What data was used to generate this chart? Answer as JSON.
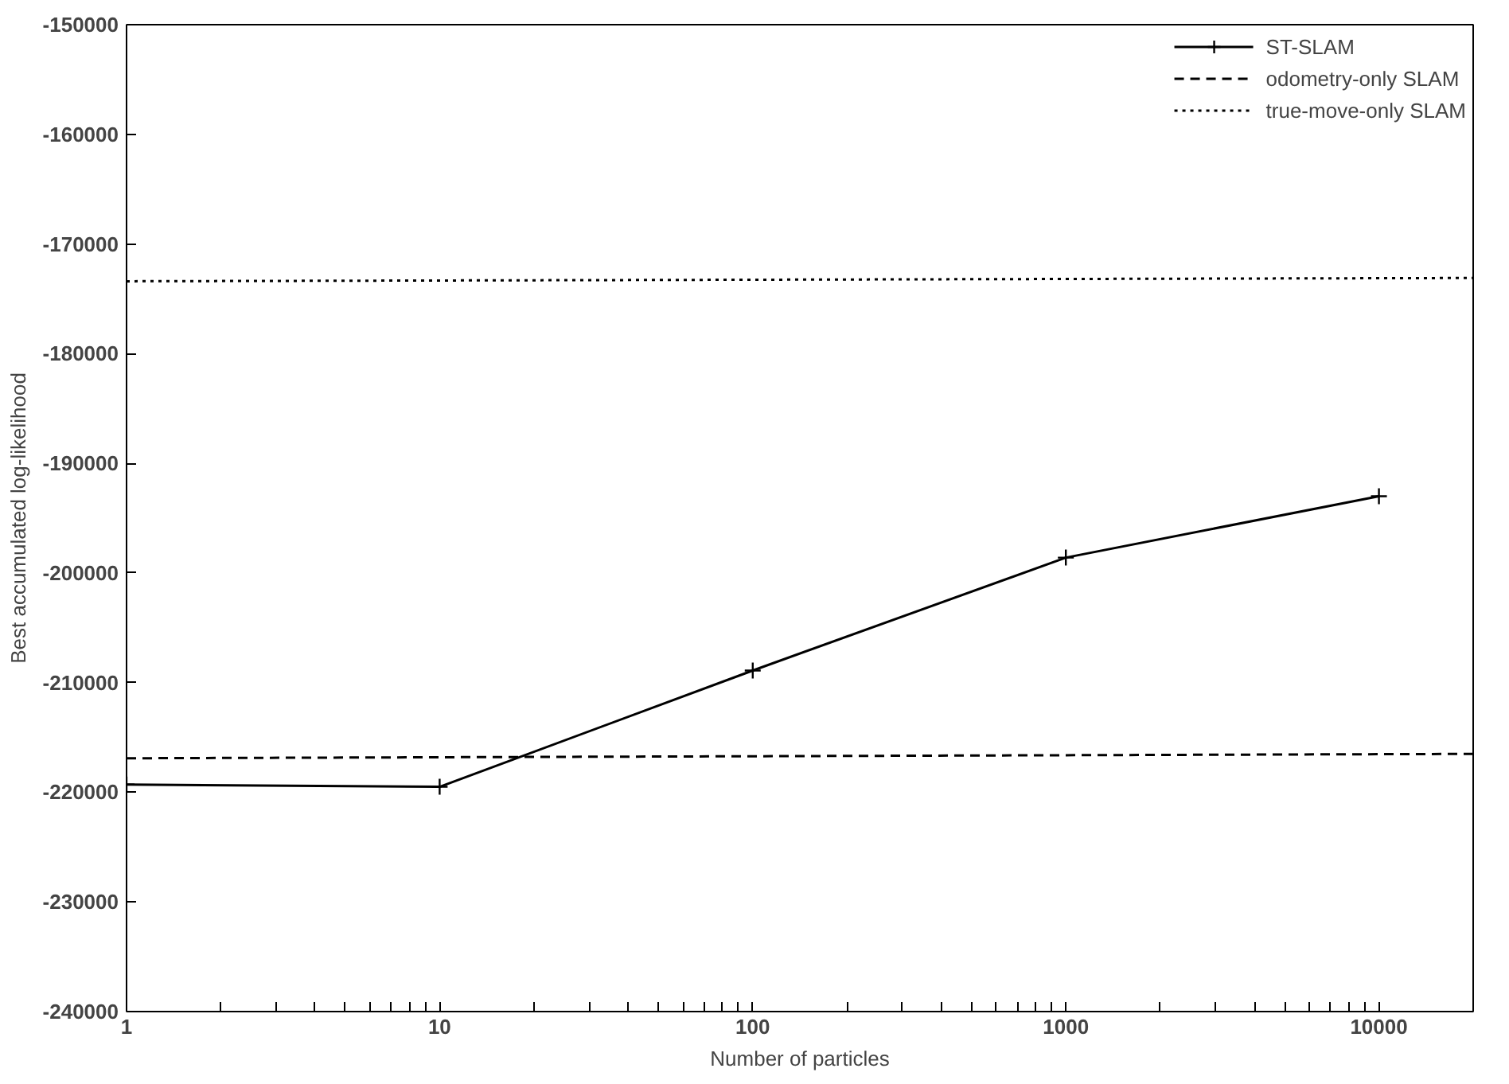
{
  "chart_data": {
    "type": "line",
    "xlabel": "Number of particles",
    "ylabel": "Best accumulated log-likelihood",
    "log": "x",
    "grid": false,
    "legend": "top right",
    "xlim": [
      1,
      20000
    ],
    "ylim": [
      -240000,
      -150000
    ],
    "xticks": [
      1,
      {
        "value": 2,
        "label": null
      },
      {
        "value": 3,
        "label": null
      },
      {
        "value": 4,
        "label": null
      },
      {
        "value": 5,
        "label": null
      },
      {
        "value": 6,
        "label": null
      },
      {
        "value": 7,
        "label": null
      },
      {
        "value": 8,
        "label": null
      },
      {
        "value": 9,
        "label": null
      },
      10,
      {
        "value": 20,
        "label": null
      },
      {
        "value": 30,
        "label": null
      },
      {
        "value": 40,
        "label": null
      },
      {
        "value": 50,
        "label": null
      },
      {
        "value": 60,
        "label": null
      },
      {
        "value": 70,
        "label": null
      },
      {
        "value": 80,
        "label": null
      },
      {
        "value": 90,
        "label": null
      },
      100,
      {
        "value": 200,
        "label": null
      },
      {
        "value": 300,
        "label": null
      },
      {
        "value": 400,
        "label": null
      },
      {
        "value": 500,
        "label": null
      },
      {
        "value": 600,
        "label": null
      },
      {
        "value": 700,
        "label": null
      },
      {
        "value": 800,
        "label": null
      },
      {
        "value": 900,
        "label": null
      },
      1000,
      {
        "value": 2000,
        "label": null
      },
      {
        "value": 3000,
        "label": null
      },
      {
        "value": 4000,
        "label": null
      },
      {
        "value": 5000,
        "label": null
      },
      {
        "value": 6000,
        "label": null
      },
      {
        "value": 7000,
        "label": null
      },
      {
        "value": 8000,
        "label": null
      },
      {
        "value": 9000,
        "label": null
      },
      10000,
      {
        "value": 20000,
        "label": null
      }
    ],
    "yticks": [
      -240000,
      -230000,
      -220000,
      -210000,
      -200000,
      -190000,
      -180000,
      -170000,
      -160000,
      -150000
    ],
    "series": [
      {
        "name": "ST-SLAM",
        "color": "#000000",
        "marker": "cross",
        "line_style": "solid",
        "x": [
          1,
          10,
          100,
          1000,
          10000
        ],
        "values": [
          -219300,
          -219500,
          -208900,
          -198600,
          -193000
        ]
      },
      {
        "name": "odometry-only SLAM",
        "color": "#000000",
        "marker": "none",
        "line_style": "dashed",
        "x": [
          1,
          20000
        ],
        "values": [
          -216900,
          -216500
        ]
      },
      {
        "name": "true-move-only SLAM",
        "color": "#000000",
        "marker": "none",
        "line_style": "dotted",
        "x": [
          1,
          20000
        ],
        "values": [
          -173400,
          -173100
        ]
      }
    ]
  }
}
